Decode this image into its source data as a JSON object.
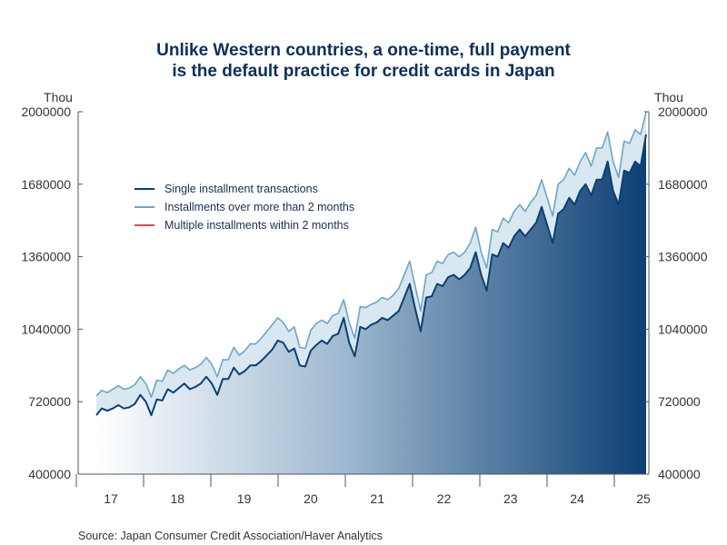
{
  "chart_data": {
    "type": "area",
    "title_lines": [
      "Unlike Western countries, a one-time, full payment",
      "is the default practice for credit cards in Japan"
    ],
    "y_unit_left": "Thou",
    "y_unit_right": "Thou",
    "ylim": [
      400000,
      2000000
    ],
    "y_ticks": [
      400000,
      720000,
      1040000,
      1360000,
      1680000,
      2000000
    ],
    "y_tick_labels": [
      "400000",
      "720000",
      "1040000",
      "1360000",
      "1680000",
      "2000000"
    ],
    "x_tick_labels": [
      "17",
      "18",
      "19",
      "20",
      "21",
      "22",
      "23",
      "24",
      "25"
    ],
    "x_start": "2016-09",
    "grid": false,
    "legend_position": "upper-left",
    "series": [
      {
        "name": "Single installment transactions",
        "color": "#0d3f73",
        "values": [
          660000,
          690000,
          680000,
          690000,
          705000,
          690000,
          695000,
          710000,
          750000,
          720000,
          660000,
          730000,
          725000,
          775000,
          760000,
          780000,
          800000,
          775000,
          785000,
          800000,
          830000,
          800000,
          750000,
          820000,
          820000,
          870000,
          840000,
          855000,
          880000,
          880000,
          900000,
          925000,
          950000,
          990000,
          980000,
          940000,
          955000,
          880000,
          875000,
          945000,
          970000,
          990000,
          975000,
          1010000,
          1020000,
          1090000,
          980000,
          920000,
          1050000,
          1040000,
          1060000,
          1070000,
          1090000,
          1080000,
          1100000,
          1120000,
          1180000,
          1240000,
          1130000,
          1030000,
          1180000,
          1185000,
          1240000,
          1230000,
          1270000,
          1280000,
          1260000,
          1280000,
          1310000,
          1380000,
          1280000,
          1210000,
          1370000,
          1360000,
          1420000,
          1400000,
          1450000,
          1480000,
          1450000,
          1480000,
          1510000,
          1580000,
          1500000,
          1420000,
          1550000,
          1570000,
          1620000,
          1590000,
          1650000,
          1680000,
          1630000,
          1700000,
          1700000,
          1780000,
          1650000,
          1590000,
          1740000,
          1730000,
          1780000,
          1760000,
          1900000
        ]
      },
      {
        "name": "Installments over more than 2 months",
        "color": "#6ea6c4",
        "values": [
          745000,
          770000,
          760000,
          775000,
          790000,
          775000,
          780000,
          795000,
          830000,
          800000,
          740000,
          815000,
          810000,
          860000,
          845000,
          865000,
          880000,
          860000,
          870000,
          885000,
          915000,
          885000,
          830000,
          905000,
          905000,
          960000,
          925000,
          945000,
          975000,
          975000,
          1000000,
          1030000,
          1060000,
          1090000,
          1070000,
          1030000,
          1050000,
          960000,
          955000,
          1035000,
          1065000,
          1080000,
          1065000,
          1100000,
          1110000,
          1170000,
          1070000,
          1000000,
          1140000,
          1135000,
          1150000,
          1160000,
          1180000,
          1170000,
          1190000,
          1220000,
          1280000,
          1340000,
          1230000,
          1120000,
          1280000,
          1290000,
          1340000,
          1330000,
          1370000,
          1380000,
          1360000,
          1380000,
          1420000,
          1490000,
          1380000,
          1310000,
          1480000,
          1470000,
          1530000,
          1510000,
          1560000,
          1590000,
          1560000,
          1600000,
          1630000,
          1700000,
          1620000,
          1540000,
          1680000,
          1700000,
          1750000,
          1720000,
          1780000,
          1820000,
          1760000,
          1840000,
          1840000,
          1910000,
          1780000,
          1710000,
          1870000,
          1860000,
          1920000,
          1900000,
          2000000
        ]
      },
      {
        "name": "Multiple installments within 2 months",
        "color": "#d9464a",
        "values": []
      }
    ]
  },
  "source_text": "Source:  Japan Consumer Credit Association/Haver Analytics"
}
